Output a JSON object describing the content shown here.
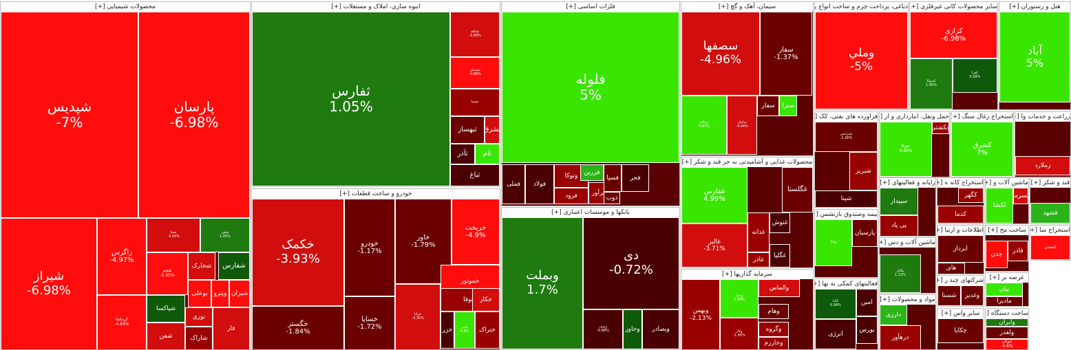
{
  "colors": {
    "up_strong": "#39e600",
    "up_mid": "#2bb31a",
    "up_dark": "#1f7a10",
    "up_deep": "#0f5a0a",
    "down_strong": "#ff0d0d",
    "down_mid": "#d10d0d",
    "down_dark": "#990000",
    "down_deep": "#6b0000",
    "down_darkest": "#4a0000"
  },
  "sectors": [
    {
      "id": "s1",
      "title": "محصولات شیمیایی [+]",
      "tiles": [
        {
          "sym": "شپدیس",
          "pct": "-7%",
          "c": "down_strong"
        },
        {
          "sym": "پارسان",
          "pct": "-6.98%",
          "c": "down_strong"
        },
        {
          "sym": "شیراز",
          "pct": "-6.98%",
          "c": "down_strong"
        },
        {
          "sym": "زاگرس",
          "pct": "-4.97%",
          "c": "down_strong"
        },
        {
          "sym": "کرماشا",
          "pct": "-4.84%",
          "c": "down_strong"
        },
        {
          "sym": "شپنا",
          "pct": "-3.24%",
          "c": "down_mid"
        },
        {
          "sym": "شفن",
          "pct": "1.05%",
          "c": "up_dark"
        },
        {
          "sym": "شجم",
          "pct": "-5.35%",
          "c": "down_strong"
        },
        {
          "sym": "شخارک",
          "pct": "",
          "c": "down_mid"
        },
        {
          "sym": "شفارس",
          "pct": "",
          "c": "up_deep"
        },
        {
          "sym": "بوعلی",
          "pct": "",
          "c": "down_strong"
        },
        {
          "sym": "وپترو",
          "pct": "",
          "c": "down_strong"
        },
        {
          "sym": "شیران",
          "pct": "",
          "c": "down_strong"
        },
        {
          "sym": "شپاکسا",
          "pct": "",
          "c": "up_deep"
        },
        {
          "sym": "شفن",
          "pct": "",
          "c": "down_mid"
        },
        {
          "sym": "نوری",
          "pct": "",
          "c": "down_mid"
        },
        {
          "sym": "شاراک",
          "pct": "",
          "c": "down_dark"
        },
        {
          "sym": "فار",
          "pct": "",
          "c": "down_mid"
        }
      ]
    },
    {
      "id": "s2",
      "title": "انبوه سازی، املاک و مستغلات [+]",
      "tiles": [
        {
          "sym": "ثفارس",
          "pct": "1.05%",
          "c": "up_dark"
        },
        {
          "sym": "ثشاهد",
          "pct": "-3.69%",
          "c": "down_mid"
        },
        {
          "sym": "ثمسکن",
          "pct": "-4.86%",
          "c": "down_strong"
        },
        {
          "sym": "ثنوسا",
          "pct": "",
          "c": "down_dark"
        },
        {
          "sym": "ثبهساز",
          "pct": "",
          "c": "down_deep"
        },
        {
          "sym": "ثشرق",
          "pct": "",
          "c": "down_mid"
        },
        {
          "sym": "ثآذر",
          "pct": "",
          "c": "down_darkest"
        },
        {
          "sym": "ثام",
          "pct": "",
          "c": "up_strong"
        },
        {
          "sym": "ثباغ",
          "pct": "",
          "c": "down_darkest"
        }
      ]
    },
    {
      "id": "s3",
      "title": "خودرو و ساخت قطعات [+]",
      "tiles": [
        {
          "sym": "خکمک",
          "pct": "-3.93%",
          "c": "down_mid"
        },
        {
          "sym": "خگستر",
          "pct": "-1.84%",
          "c": "down_deep"
        },
        {
          "sym": "خودرو",
          "pct": "-1.17%",
          "c": "down_deep"
        },
        {
          "sym": "خساپا",
          "pct": "-1.72%",
          "c": "down_deep"
        },
        {
          "sym": "خاور",
          "pct": "-1.79%",
          "c": "down_deep"
        },
        {
          "sym": "خریخت",
          "pct": "-4.9%",
          "c": "down_strong"
        },
        {
          "sym": "خراپا",
          "pct": "-3.35%",
          "c": "down_mid"
        },
        {
          "sym": "خموتور",
          "pct": "",
          "c": "down_strong"
        },
        {
          "sym": "خمحرکه",
          "pct": "",
          "c": "down_mid"
        },
        {
          "sym": "ختوقا",
          "pct": "",
          "c": "down_dark"
        },
        {
          "sym": "خکار",
          "pct": "",
          "c": "down_mid"
        },
        {
          "sym": "خزر",
          "pct": "",
          "c": "down_darkest"
        },
        {
          "sym": "خفنر",
          "pct": "4.9%",
          "c": "up_strong"
        },
        {
          "sym": "ختراک",
          "pct": "",
          "c": "down_dark"
        }
      ]
    },
    {
      "id": "s4",
      "title": "فلزات اساسی [+]",
      "tiles": [
        {
          "sym": "فلوله",
          "pct": "5%",
          "c": "up_strong"
        },
        {
          "sym": "فملی",
          "pct": "",
          "c": "down_darkest"
        },
        {
          "sym": "فولاد",
          "pct": "",
          "c": "down_darkest"
        },
        {
          "sym": "وتوکا",
          "pct": "",
          "c": "down_dark"
        },
        {
          "sym": "فرود",
          "pct": "",
          "c": "down_dark"
        },
        {
          "sym": "فزرین",
          "pct": "",
          "c": "up_mid"
        },
        {
          "sym": "فرآور",
          "pct": "",
          "c": "down_dark"
        },
        {
          "sym": "فسپا",
          "pct": "",
          "c": "down_deep"
        },
        {
          "sym": "ذوب",
          "pct": "",
          "c": "down_deep"
        },
        {
          "sym": "فجر",
          "pct": "",
          "c": "down_darkest"
        }
      ]
    },
    {
      "id": "s5",
      "title": "بانکها و موسسات اعتباری [+]",
      "tiles": [
        {
          "sym": "وبملت",
          "pct": "1.7%",
          "c": "up_dark"
        },
        {
          "sym": "دی",
          "pct": "-0.72%",
          "c": "down_darkest"
        },
        {
          "sym": "ونوین",
          "pct": "-0.88%",
          "c": "down_darkest"
        },
        {
          "sym": "وخاور",
          "pct": "",
          "c": "up_deep"
        },
        {
          "sym": "وبصادر",
          "pct": "",
          "c": "down_darkest"
        }
      ]
    },
    {
      "id": "s6",
      "title": "سیمان، آهک و گچ [+]",
      "tiles": [
        {
          "sym": "سصفها",
          "pct": "-4.96%",
          "c": "down_mid"
        },
        {
          "sym": "سفار",
          "pct": "-1.37%",
          "c": "down_deep"
        },
        {
          "sym": "سیلام",
          "pct": "4.97%",
          "c": "up_strong"
        },
        {
          "sym": "سامان",
          "pct": "-4.94%",
          "c": "down_mid"
        },
        {
          "sym": "سفار",
          "pct": "",
          "c": "down_deep"
        },
        {
          "sym": "سترا",
          "pct": "",
          "c": "up_strong"
        }
      ]
    },
    {
      "id": "s7",
      "title": "محصولات غذایی و آشامیدنی به جز قند و شکر [+]",
      "tiles": [
        {
          "sym": "غفارس",
          "pct": "4.99%",
          "c": "up_strong"
        },
        {
          "sym": "غالبر",
          "pct": "-3.71%",
          "c": "down_mid"
        },
        {
          "sym": "غگلستا",
          "pct": "",
          "c": "down_deep"
        },
        {
          "sym": "غدانه",
          "pct": "",
          "c": "down_dark"
        },
        {
          "sym": "غنوش",
          "pct": "",
          "c": "down_darkest"
        },
        {
          "sym": "غگلپا",
          "pct": "",
          "c": "down_darkest"
        },
        {
          "sym": "غاذر",
          "pct": "",
          "c": "down_dark"
        }
      ]
    },
    {
      "id": "s8",
      "title": "سرمایه گذاریها [+]",
      "tiles": [
        {
          "sym": "وبهمن",
          "pct": "-2.13%",
          "c": "down_dark"
        },
        {
          "sym": "وصنا",
          "pct": "4.99%",
          "c": "up_strong"
        },
        {
          "sym": "وکار",
          "pct": "-1.45%",
          "c": "down_dark"
        },
        {
          "sym": "والماس",
          "pct": "",
          "c": "down_mid"
        },
        {
          "sym": "وهام",
          "pct": "",
          "c": "down_deep"
        },
        {
          "sym": "وگروه",
          "pct": "",
          "c": "down_dark"
        },
        {
          "sym": "وخارزم",
          "pct": "",
          "c": "down_dark"
        }
      ]
    },
    {
      "id": "s9",
      "title": "دباغی، پرداخت چرم و ساخت انواع پا [+]",
      "tiles": [
        {
          "sym": "وملي",
          "pct": "-5%",
          "c": "down_strong"
        }
      ]
    },
    {
      "id": "s10",
      "title": "سایر محصولات کانی غیرفلزی [+]",
      "tiles": [
        {
          "sym": "کرازی",
          "pct": "-6.98%",
          "c": "down_strong"
        },
        {
          "sym": "کسوکا",
          "pct": "1.95%",
          "c": "up_dark"
        },
        {
          "sym": "کفرا",
          "pct": "0.09%",
          "c": "up_deep"
        }
      ]
    },
    {
      "id": "s11",
      "title": "هتل و رستوران [+]",
      "tiles": [
        {
          "sym": "آباد",
          "pct": "5%",
          "c": "up_strong"
        }
      ]
    },
    {
      "id": "s12",
      "title": "فراورده های نفتی، کک [+]",
      "tiles": [
        {
          "sym": "شترانس",
          "pct": "-1.36%",
          "c": "down_deep"
        },
        {
          "sym": "شبریز",
          "pct": "",
          "c": "down_dark"
        },
        {
          "sym": "شپنا",
          "pct": "",
          "c": "down_darkest"
        }
      ]
    },
    {
      "id": "s13",
      "title": "حمل ونقل، انبارداری و ار [+]",
      "tiles": [
        {
          "sym": "حتوکا",
          "pct": "4.99%",
          "c": "up_strong"
        },
        {
          "sym": "حکشتی",
          "pct": "",
          "c": "down_dark"
        }
      ]
    },
    {
      "id": "s14",
      "title": "استخراج زغال سنگ [+]",
      "tiles": [
        {
          "sym": "کشرق",
          "pct": "7%",
          "c": "up_strong"
        }
      ]
    },
    {
      "id": "s15",
      "title": "زراعت و خدمات وا [+]",
      "tiles": [
        {
          "sym": "زملارد",
          "pct": "",
          "c": "down_mid"
        }
      ]
    },
    {
      "id": "s16",
      "title": "رایانه و فعالیتهای [+]",
      "tiles": [
        {
          "sym": "سپیدار",
          "pct": "",
          "c": "up_dark"
        },
        {
          "sym": "پی پاد",
          "pct": "",
          "c": "down_dark"
        }
      ]
    },
    {
      "id": "s17",
      "title": "استخراج کانه ه [+]",
      "tiles": [
        {
          "sym": "کگهر",
          "pct": "",
          "c": "down_dark"
        },
        {
          "sym": "کدما",
          "pct": "",
          "c": "down_dark"
        }
      ]
    },
    {
      "id": "s18",
      "title": "ماشین آلات و [+]",
      "tiles": [
        {
          "sym": "لکشا",
          "pct": "",
          "c": "up_strong"
        },
        {
          "sym": "لسرما",
          "pct": "",
          "c": "down_mid"
        }
      ]
    },
    {
      "id": "s19",
      "title": "قند و شکر [+]",
      "tiles": [
        {
          "sym": "قشهد",
          "pct": "",
          "c": "up_mid"
        }
      ]
    },
    {
      "id": "s20",
      "title": "بیمه وصندوق بازنشس [+]",
      "tiles": [
        {
          "sym": "ودانا",
          "pct": "",
          "c": "up_strong"
        },
        {
          "sym": "پارسیان",
          "pct": "",
          "c": "down_deep"
        }
      ]
    },
    {
      "id": "s21",
      "title": "ماشین آلات و دس [+]",
      "tiles": [
        {
          "sym": "بکابل",
          "pct": "1.12%",
          "c": "up_dark"
        }
      ]
    },
    {
      "id": "s22",
      "title": "اطلاعات و ارتبا [+]",
      "tiles": [
        {
          "sym": "ابرداز",
          "pct": "",
          "c": "down_deep"
        },
        {
          "sym": "های",
          "pct": "",
          "c": "down_deep"
        }
      ]
    },
    {
      "id": "s23",
      "title": "ساخت مح [+]",
      "tiles": [
        {
          "sym": "چدن",
          "pct": "",
          "c": "down_strong"
        },
        {
          "sym": "فاذر",
          "pct": "",
          "c": "down_dark"
        }
      ]
    },
    {
      "id": "s24",
      "title": "استخراج سا [+]",
      "tiles": [
        {
          "sym": "کمعدن",
          "pct": "",
          "c": "down_strong"
        }
      ]
    },
    {
      "id": "s25",
      "title": "فعالیتهای کمکی به نها [+]",
      "tiles": [
        {
          "sym": "کاما",
          "pct": "0.99%",
          "c": "up_deep"
        },
        {
          "sym": "امین",
          "pct": "",
          "c": "down_darkest"
        },
        {
          "sym": "بورس",
          "pct": "",
          "c": "down_darkest"
        },
        {
          "sym": "انرژی",
          "pct": "",
          "c": "down_darkest"
        }
      ]
    },
    {
      "id": "s26",
      "title": "مواد و محصولات [+]",
      "tiles": [
        {
          "sym": "دارزی",
          "pct": "",
          "c": "up_mid"
        },
        {
          "sym": "درهآور",
          "pct": "",
          "c": "down_dark"
        }
      ]
    },
    {
      "id": "s27",
      "title": "شرکتهای چند ر [+]",
      "tiles": [
        {
          "sym": "شستا",
          "pct": "",
          "c": "down_deep"
        },
        {
          "sym": "وغدیر",
          "pct": "",
          "c": "down_deep"
        }
      ]
    },
    {
      "id": "s28",
      "title": "عرضه بر [+]",
      "tiles": [
        {
          "sym": "بیان",
          "pct": "",
          "c": "up_strong"
        },
        {
          "sym": "مادیرا",
          "pct": "",
          "c": "down_deep"
        }
      ]
    },
    {
      "id": "s29",
      "title": "ساخت دستگاه [+]",
      "tiles": [
        {
          "sym": "وایران",
          "pct": "",
          "c": "up_dark"
        },
        {
          "sym": "ولغدر",
          "pct": "",
          "c": "down_deep"
        },
        {
          "sym": "لبوتان",
          "pct": "-4.6%",
          "c": "down_strong"
        }
      ]
    },
    {
      "id": "s30",
      "title": "سایر واس [+]",
      "tiles": [
        {
          "sym": "چکاپا",
          "pct": "",
          "c": "down_deep"
        }
      ]
    }
  ]
}
